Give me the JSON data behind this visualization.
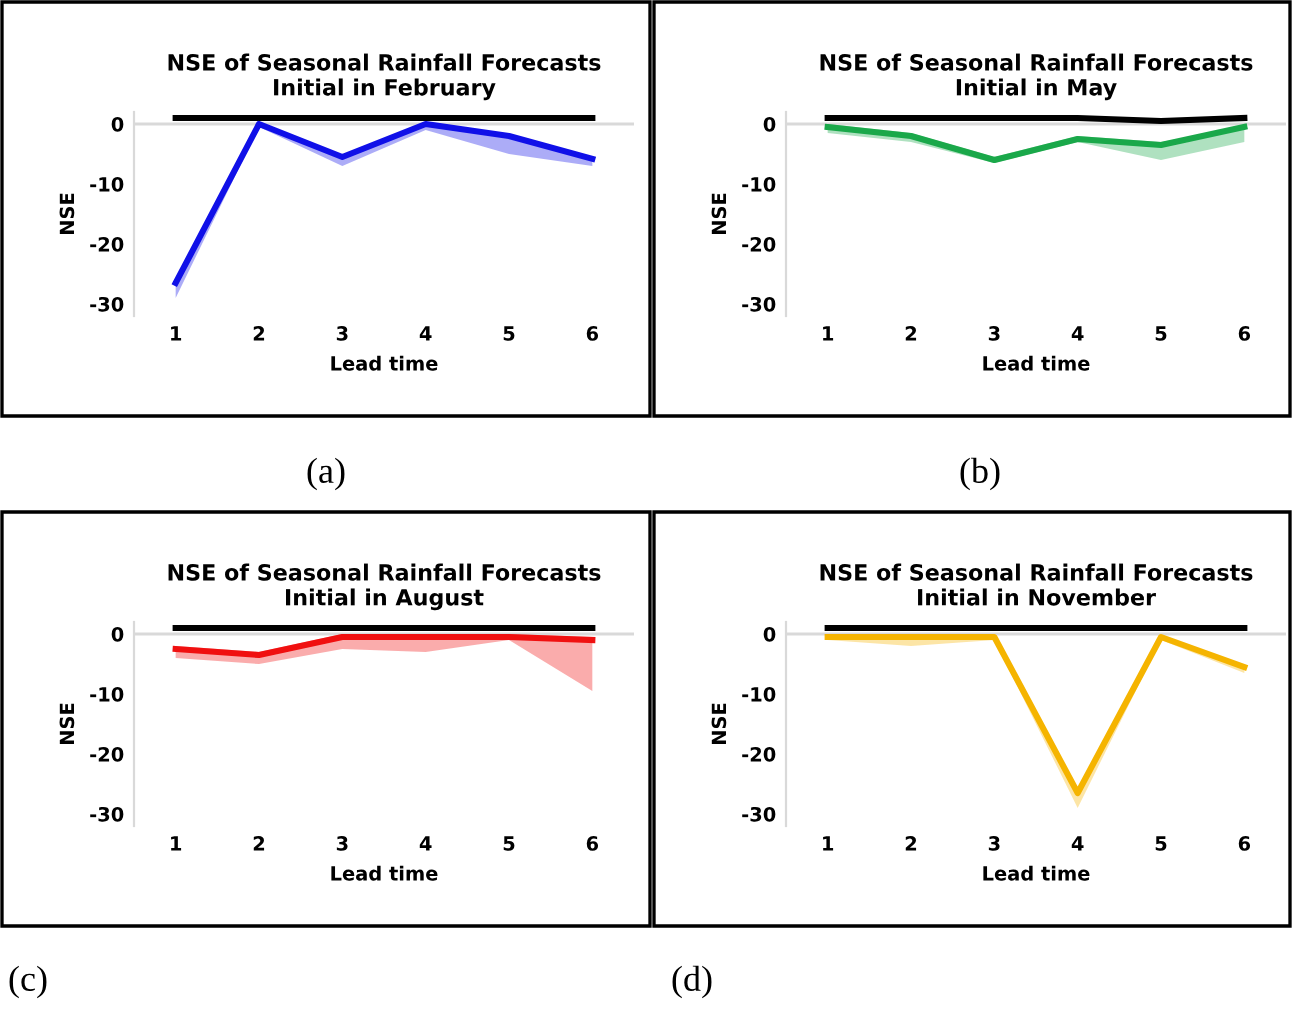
{
  "chart_data": [
    {
      "type": "line",
      "title": "NSE of Seasonal Rainfall Forecasts\nInitial in February",
      "xlabel": "Lead time",
      "ylabel": "NSE",
      "categories": [
        "1",
        "2",
        "3",
        "4",
        "5",
        "6"
      ],
      "ylim": [
        -32,
        2
      ],
      "yticks": [
        0,
        -10,
        -20,
        -30
      ],
      "grid": false,
      "legend": false,
      "ref_lines": [
        {
          "axis": "y",
          "value": 0,
          "color": "#d9d9d9"
        }
      ],
      "annotations": [
        "(a)"
      ],
      "series": [
        {
          "color": "#000000",
          "values": [
            1,
            1,
            1,
            1,
            1,
            1
          ]
        },
        {
          "color": "#1010e8",
          "values": [
            -26.5,
            0,
            -5.5,
            0,
            -2,
            -5.8
          ],
          "lower": [
            -29,
            -0.5,
            -7,
            -1,
            -5,
            -7
          ],
          "upper": [
            -26.5,
            0,
            -5.5,
            0,
            -2,
            -5.8
          ]
        }
      ]
    },
    {
      "type": "line",
      "title": "NSE of Seasonal Rainfall Forecasts\nInitial in May",
      "xlabel": "Lead time",
      "ylabel": "NSE",
      "categories": [
        "1",
        "2",
        "3",
        "4",
        "5",
        "6"
      ],
      "ylim": [
        -32,
        2
      ],
      "yticks": [
        0,
        -10,
        -20,
        -30
      ],
      "grid": false,
      "legend": false,
      "ref_lines": [
        {
          "axis": "y",
          "value": 0,
          "color": "#d9d9d9"
        }
      ],
      "annotations": [
        "(b)"
      ],
      "series": [
        {
          "color": "#000000",
          "values": [
            1,
            1,
            1,
            1,
            0.5,
            1
          ]
        },
        {
          "color": "#1aa84a",
          "values": [
            -0.5,
            -2,
            -6,
            -2.5,
            -3.5,
            -0.5
          ],
          "lower": [
            -1.5,
            -3,
            -6.5,
            -3,
            -6,
            -3
          ],
          "upper": [
            0,
            -1.5,
            -5.5,
            -2,
            -3,
            -0.5
          ]
        }
      ]
    },
    {
      "type": "line",
      "title": "NSE of Seasonal Rainfall Forecasts\nInitial in August",
      "xlabel": "Lead time",
      "ylabel": "NSE",
      "categories": [
        "1",
        "2",
        "3",
        "4",
        "5",
        "6"
      ],
      "ylim": [
        -32,
        2
      ],
      "yticks": [
        0,
        -10,
        -20,
        -30
      ],
      "grid": false,
      "legend": false,
      "ref_lines": [
        {
          "axis": "y",
          "value": 0,
          "color": "#d9d9d9"
        }
      ],
      "annotations": [
        "(c)"
      ],
      "series": [
        {
          "color": "#000000",
          "values": [
            1,
            1,
            1,
            1,
            1,
            1
          ]
        },
        {
          "color": "#f01010",
          "values": [
            -2.5,
            -3.5,
            -0.5,
            -0.5,
            -0.5,
            -1
          ],
          "lower": [
            -4,
            -5,
            -2.5,
            -3,
            -1,
            -9.5
          ],
          "upper": [
            -2,
            -3,
            0,
            0,
            0,
            -0.5
          ]
        }
      ]
    },
    {
      "type": "line",
      "title": "NSE of Seasonal Rainfall Forecasts\nInitial in November",
      "xlabel": "Lead time",
      "ylabel": "NSE",
      "categories": [
        "1",
        "2",
        "3",
        "4",
        "5",
        "6"
      ],
      "ylim": [
        -32,
        2
      ],
      "yticks": [
        0,
        -10,
        -20,
        -30
      ],
      "grid": false,
      "legend": false,
      "ref_lines": [
        {
          "axis": "y",
          "value": 0,
          "color": "#d9d9d9"
        }
      ],
      "annotations": [
        "(d)"
      ],
      "series": [
        {
          "color": "#000000",
          "values": [
            1,
            1,
            1,
            1,
            1,
            1
          ]
        },
        {
          "color": "#f5b400",
          "values": [
            -0.5,
            -0.5,
            -0.5,
            -26.5,
            -0.5,
            -5.5
          ],
          "lower": [
            -1,
            -2,
            -1,
            -29,
            -1,
            -6.5
          ],
          "upper": [
            -0.5,
            -0.5,
            -0.5,
            -26.5,
            -0.5,
            -5.5
          ]
        }
      ]
    }
  ]
}
